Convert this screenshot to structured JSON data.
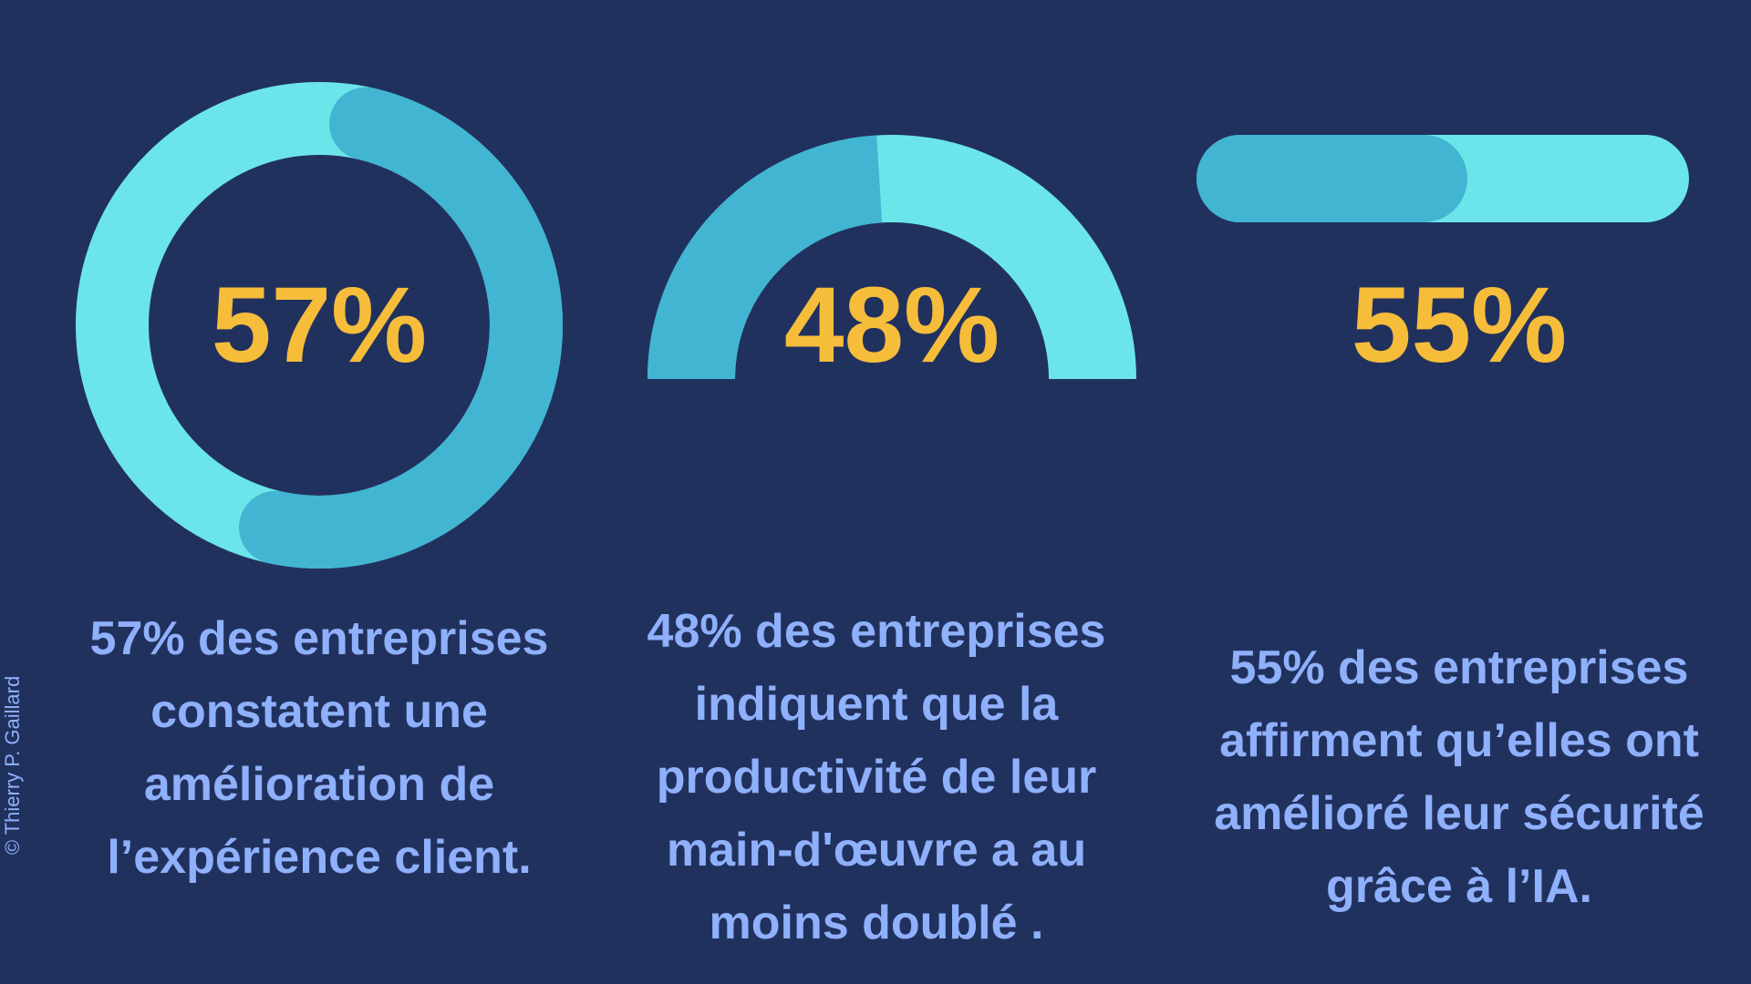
{
  "colors": {
    "background": "#21315e",
    "track": "#6be5e9",
    "fill": "#41b5d2",
    "percent_text": "#f6bd3b",
    "caption_text": "#8fb0fb",
    "credit_text": "#8fb0fb"
  },
  "chart_data": [
    {
      "type": "donut",
      "value": 57,
      "unit": "%",
      "label": "57%",
      "caption_lines": [
        "57% des entreprises",
        "constatent une",
        "amélioration de",
        "l’expérience client."
      ]
    },
    {
      "type": "semi-donut",
      "value": 48,
      "unit": "%",
      "label": "48%",
      "caption_lines": [
        "48% des entreprises",
        "indiquent que la",
        "productivité de leur",
        "main-d'œuvre a au",
        "moins doublé ."
      ]
    },
    {
      "type": "progress-bar",
      "value": 55,
      "unit": "%",
      "label": "55%",
      "caption_lines": [
        "55% des entreprises",
        "affirment qu’elles ont",
        "amélioré leur sécurité",
        "grâce à l’IA."
      ]
    }
  ],
  "credit": "© Thierry P. Gaillard"
}
